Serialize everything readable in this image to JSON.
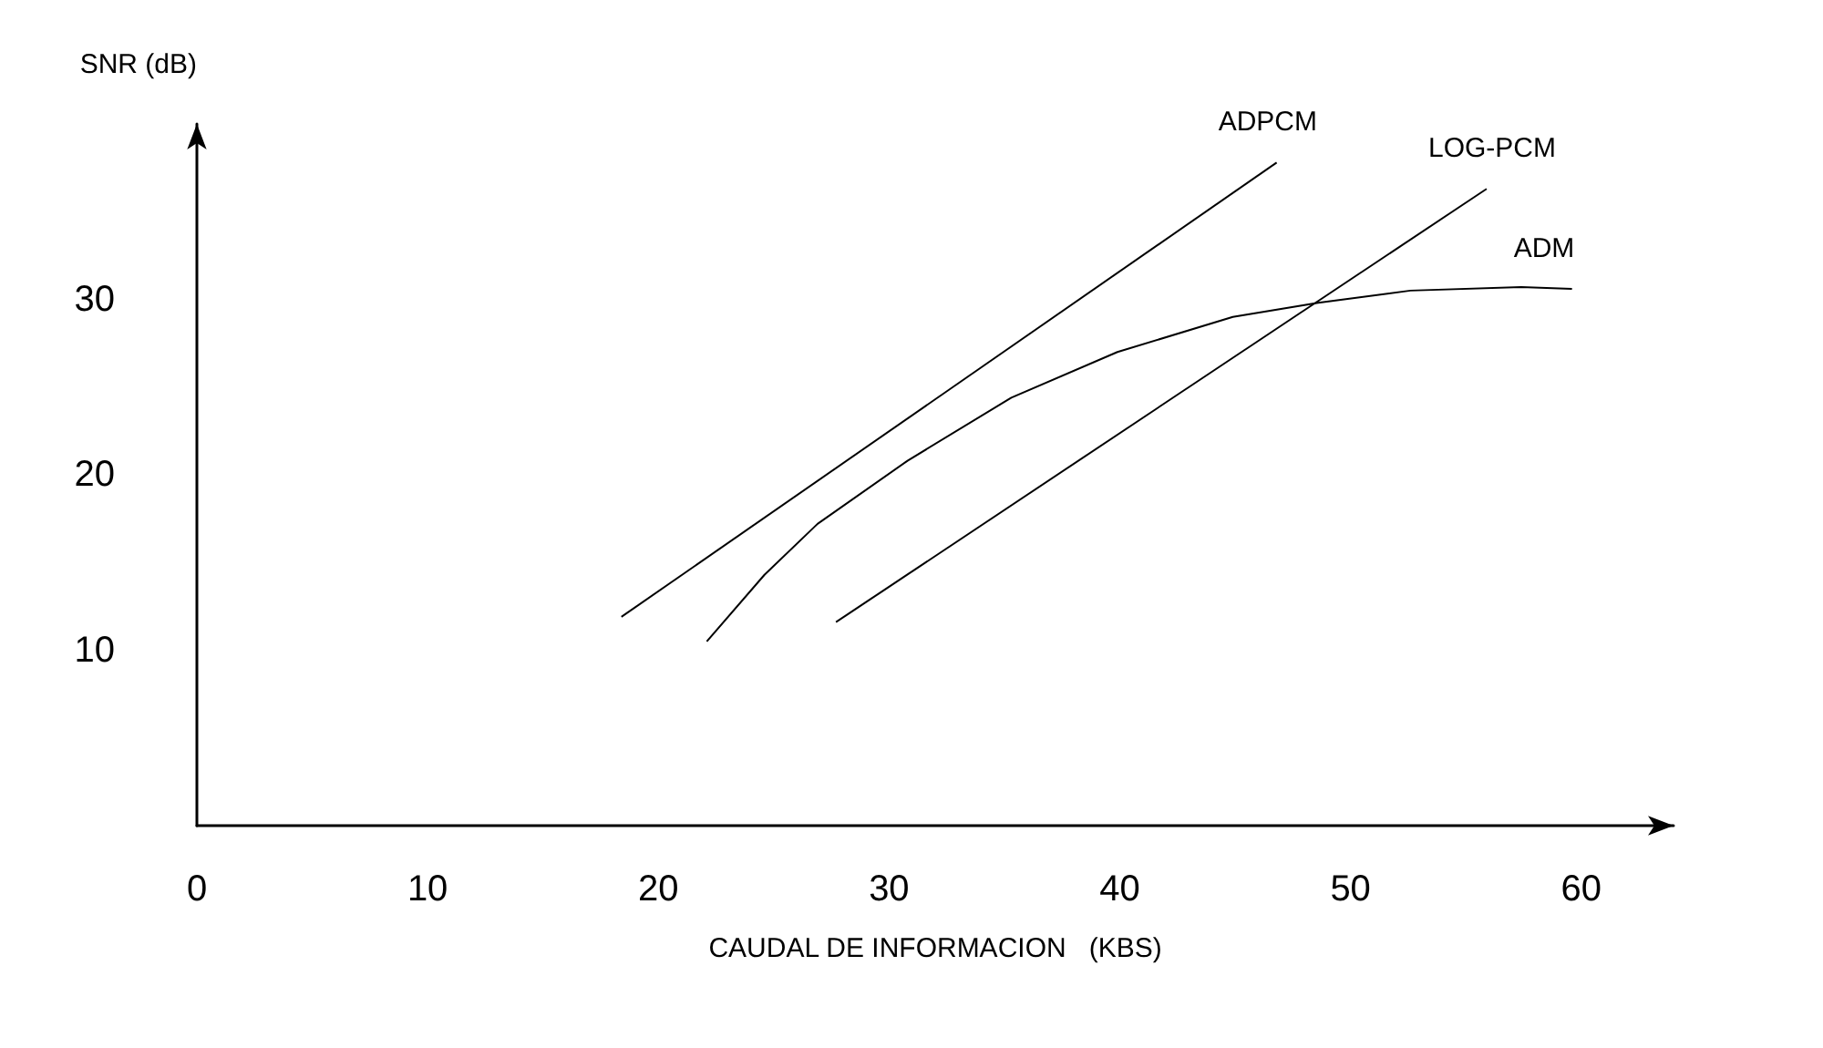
{
  "chart_data": {
    "type": "line",
    "xlabel": "CAUDAL DE INFORMACION   (KBS)",
    "ylabel": "SNR (dB)",
    "xlim": [
      0,
      64
    ],
    "xticks": [
      0,
      10,
      20,
      30,
      40,
      50,
      60
    ],
    "ylim": [
      0,
      40
    ],
    "yticks": [
      10,
      20,
      30
    ],
    "grid": false,
    "legend": false,
    "marker": "none",
    "line_style": "solid",
    "series": [
      {
        "name": "ADPCM",
        "color": "#000000",
        "x": [
          18.4,
          46.8
        ],
        "values": [
          11.9,
          37.8
        ]
      },
      {
        "name": "LOG-PCM",
        "color": "#000000",
        "x": [
          27.7,
          55.9
        ],
        "values": [
          11.6,
          36.3
        ]
      },
      {
        "name": "ADM",
        "color": "#000000",
        "x": [
          22.1,
          24.6,
          26.9,
          30.8,
          35.3,
          39.9,
          44.9,
          48.6,
          52.6,
          57.4,
          59.6
        ],
        "values": [
          10.5,
          14.3,
          17.2,
          20.8,
          24.4,
          27.0,
          29.0,
          29.8,
          30.5,
          30.7,
          30.6
        ]
      }
    ]
  }
}
